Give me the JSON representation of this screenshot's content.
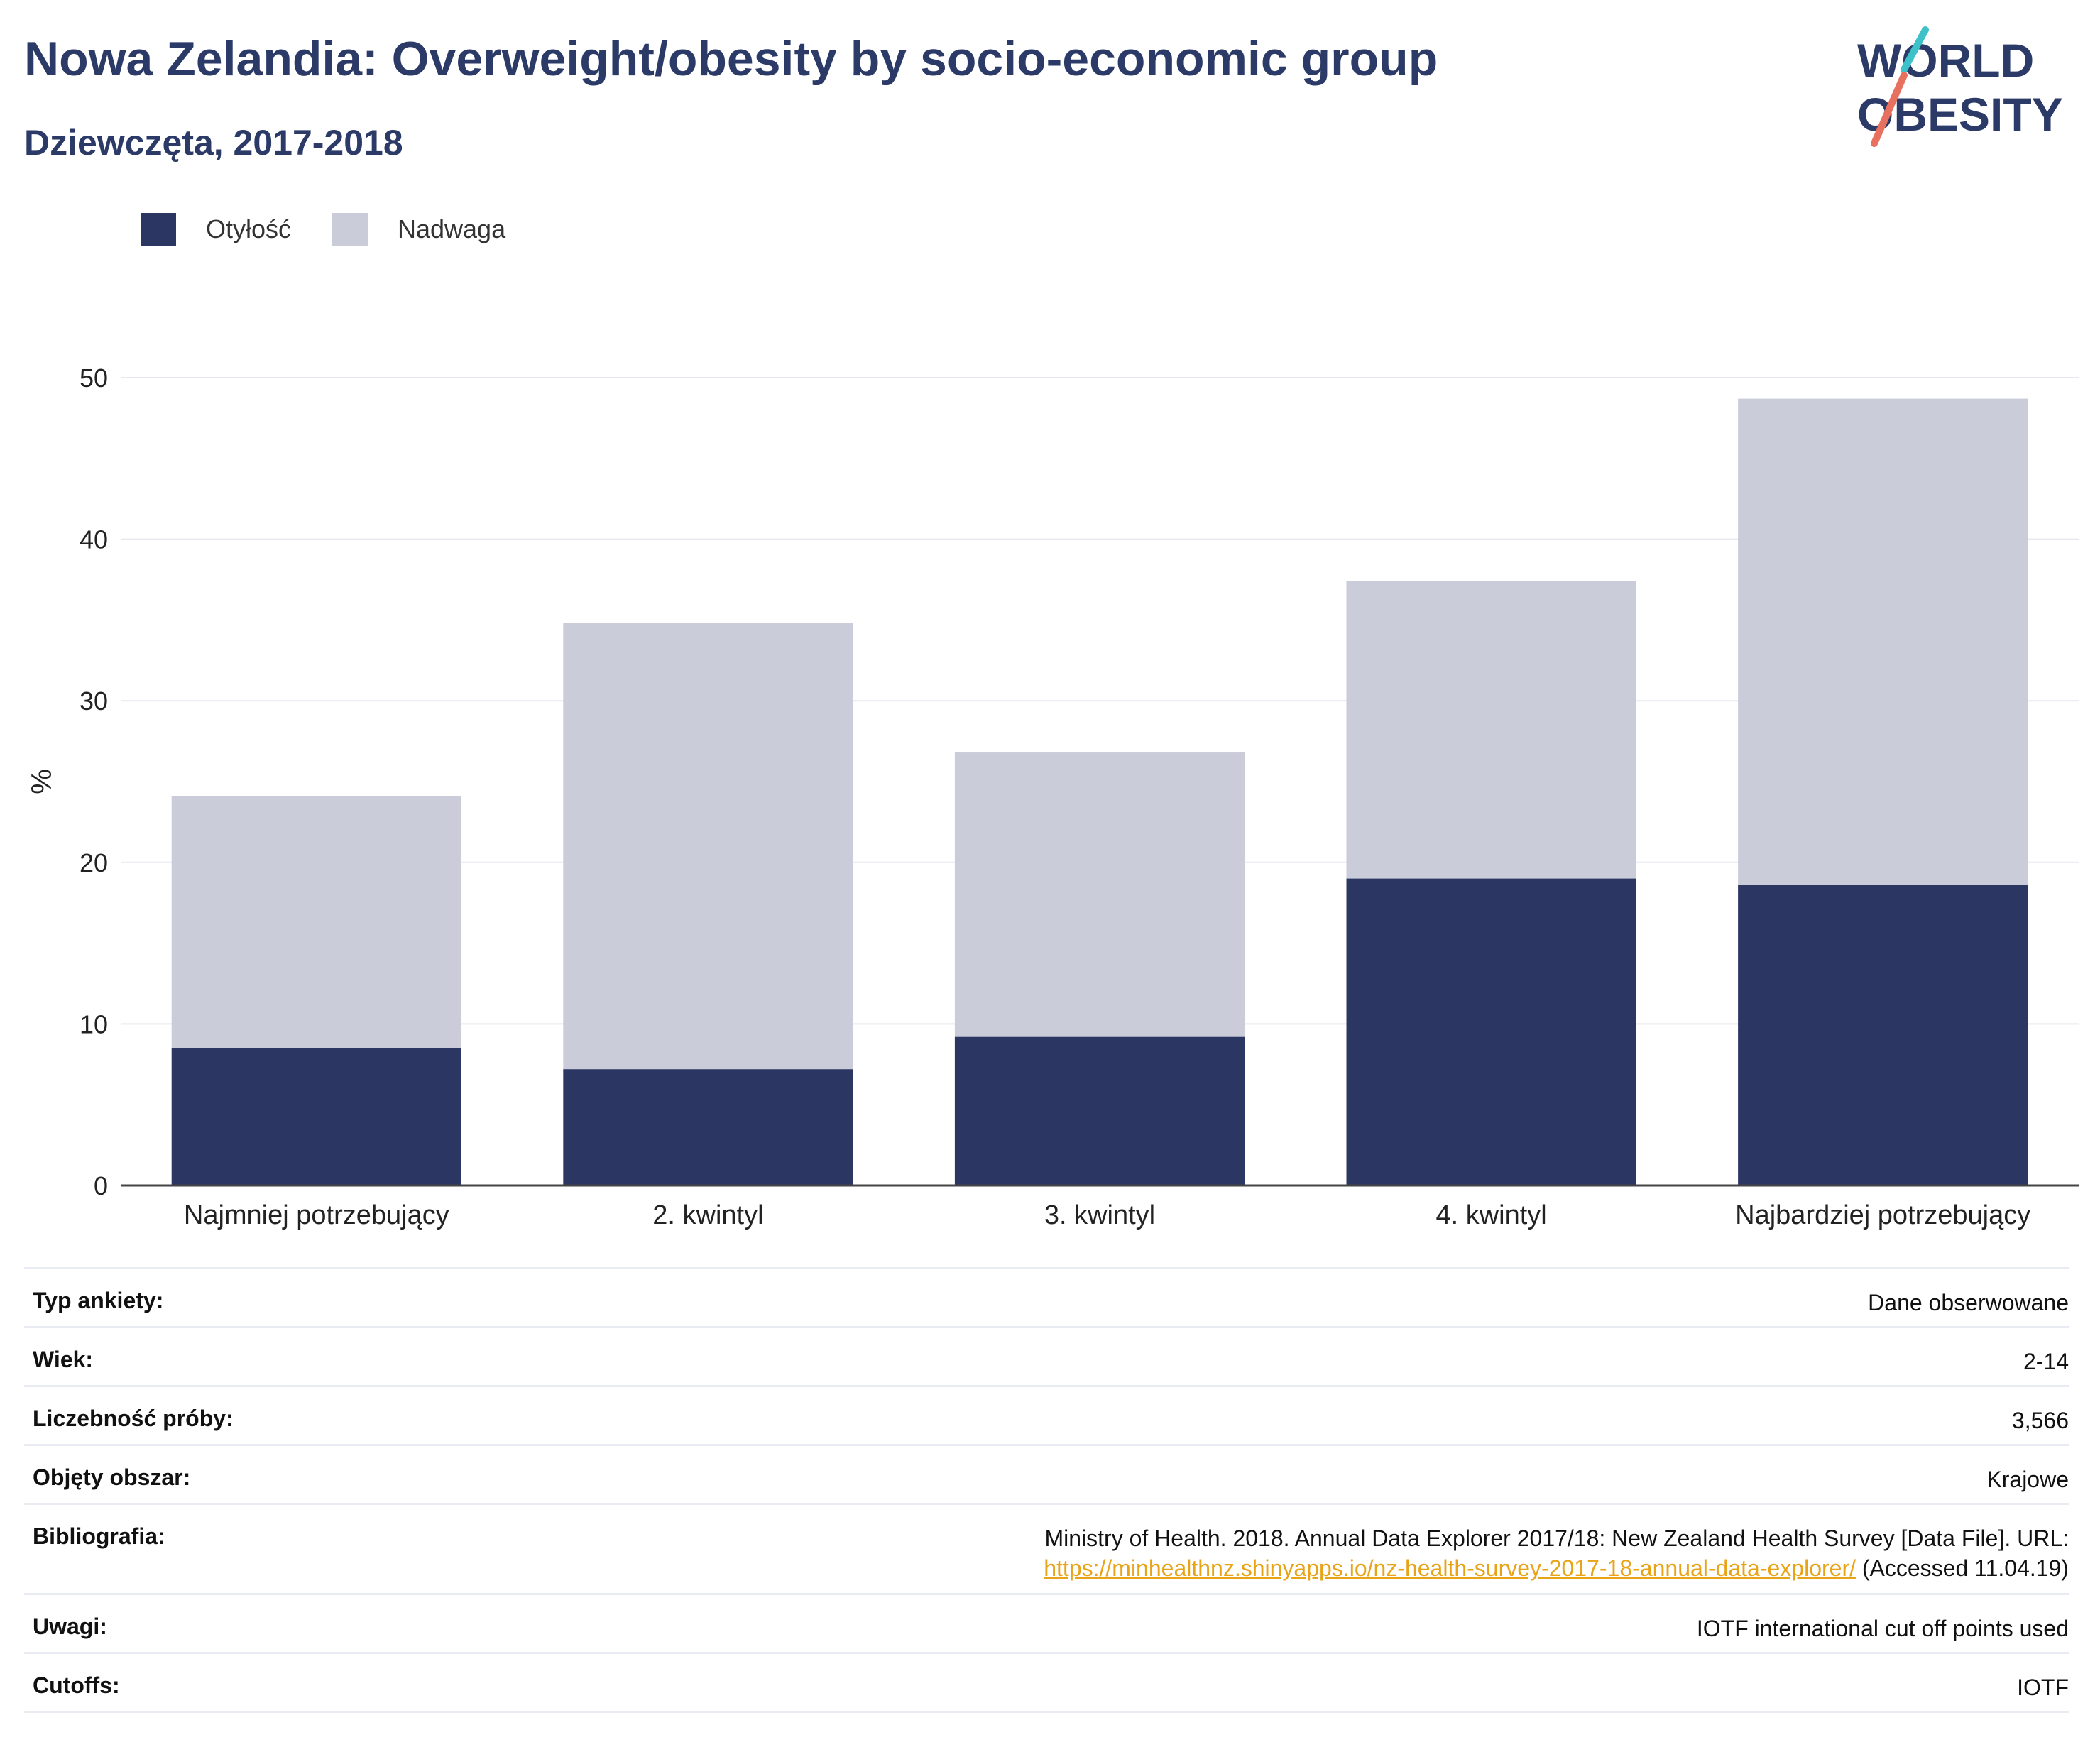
{
  "header": {
    "title": "Nowa Zelandia: Overweight/obesity by socio-economic group",
    "subtitle": "Dziewczęta, 2017-2018"
  },
  "logo": {
    "line1": "WORLD",
    "line2": "OBESITY"
  },
  "colors": {
    "obesity": "#2b3663",
    "overweight": "#cacdd9",
    "title": "#2b3a67",
    "link": "#e8a317"
  },
  "chart_data": {
    "type": "bar",
    "stacked": true,
    "categories": [
      "Najmniej potrzebujący",
      "2. kwintyl",
      "3. kwintyl",
      "4. kwintyl",
      "Najbardziej potrzebujący"
    ],
    "series": [
      {
        "name": "Otyłość",
        "values": [
          8.5,
          7.2,
          9.2,
          19.0,
          18.6
        ]
      },
      {
        "name": "Nadwaga",
        "values": [
          15.6,
          27.6,
          17.6,
          18.4,
          30.1
        ]
      }
    ],
    "ylabel": "%",
    "ylim": [
      0,
      50
    ],
    "yticks": [
      0,
      10,
      20,
      30,
      40,
      50
    ],
    "grid": true,
    "legend": "top-left"
  },
  "info": [
    {
      "label": "Typ ankiety:",
      "value": "Dane obserwowane"
    },
    {
      "label": "Wiek:",
      "value": "2-14"
    },
    {
      "label": "Liczebność próby:",
      "value": "3,566"
    },
    {
      "label": "Objęty obszar:",
      "value": "Krajowe"
    },
    {
      "label": "Bibliografia:",
      "value_line1": "Ministry of Health. 2018. Annual Data Explorer 2017/18: New Zealand Health Survey [Data File]. URL:",
      "link": "https://minhealthnz.shinyapps.io/nz-health-survey-2017-18-annual-data-explorer/",
      "value_suffix": " (Accessed 11.04.19)"
    },
    {
      "label": "Uwagi:",
      "value": "IOTF international cut off points used"
    },
    {
      "label": "Cutoffs:",
      "value": "IOTF"
    }
  ]
}
